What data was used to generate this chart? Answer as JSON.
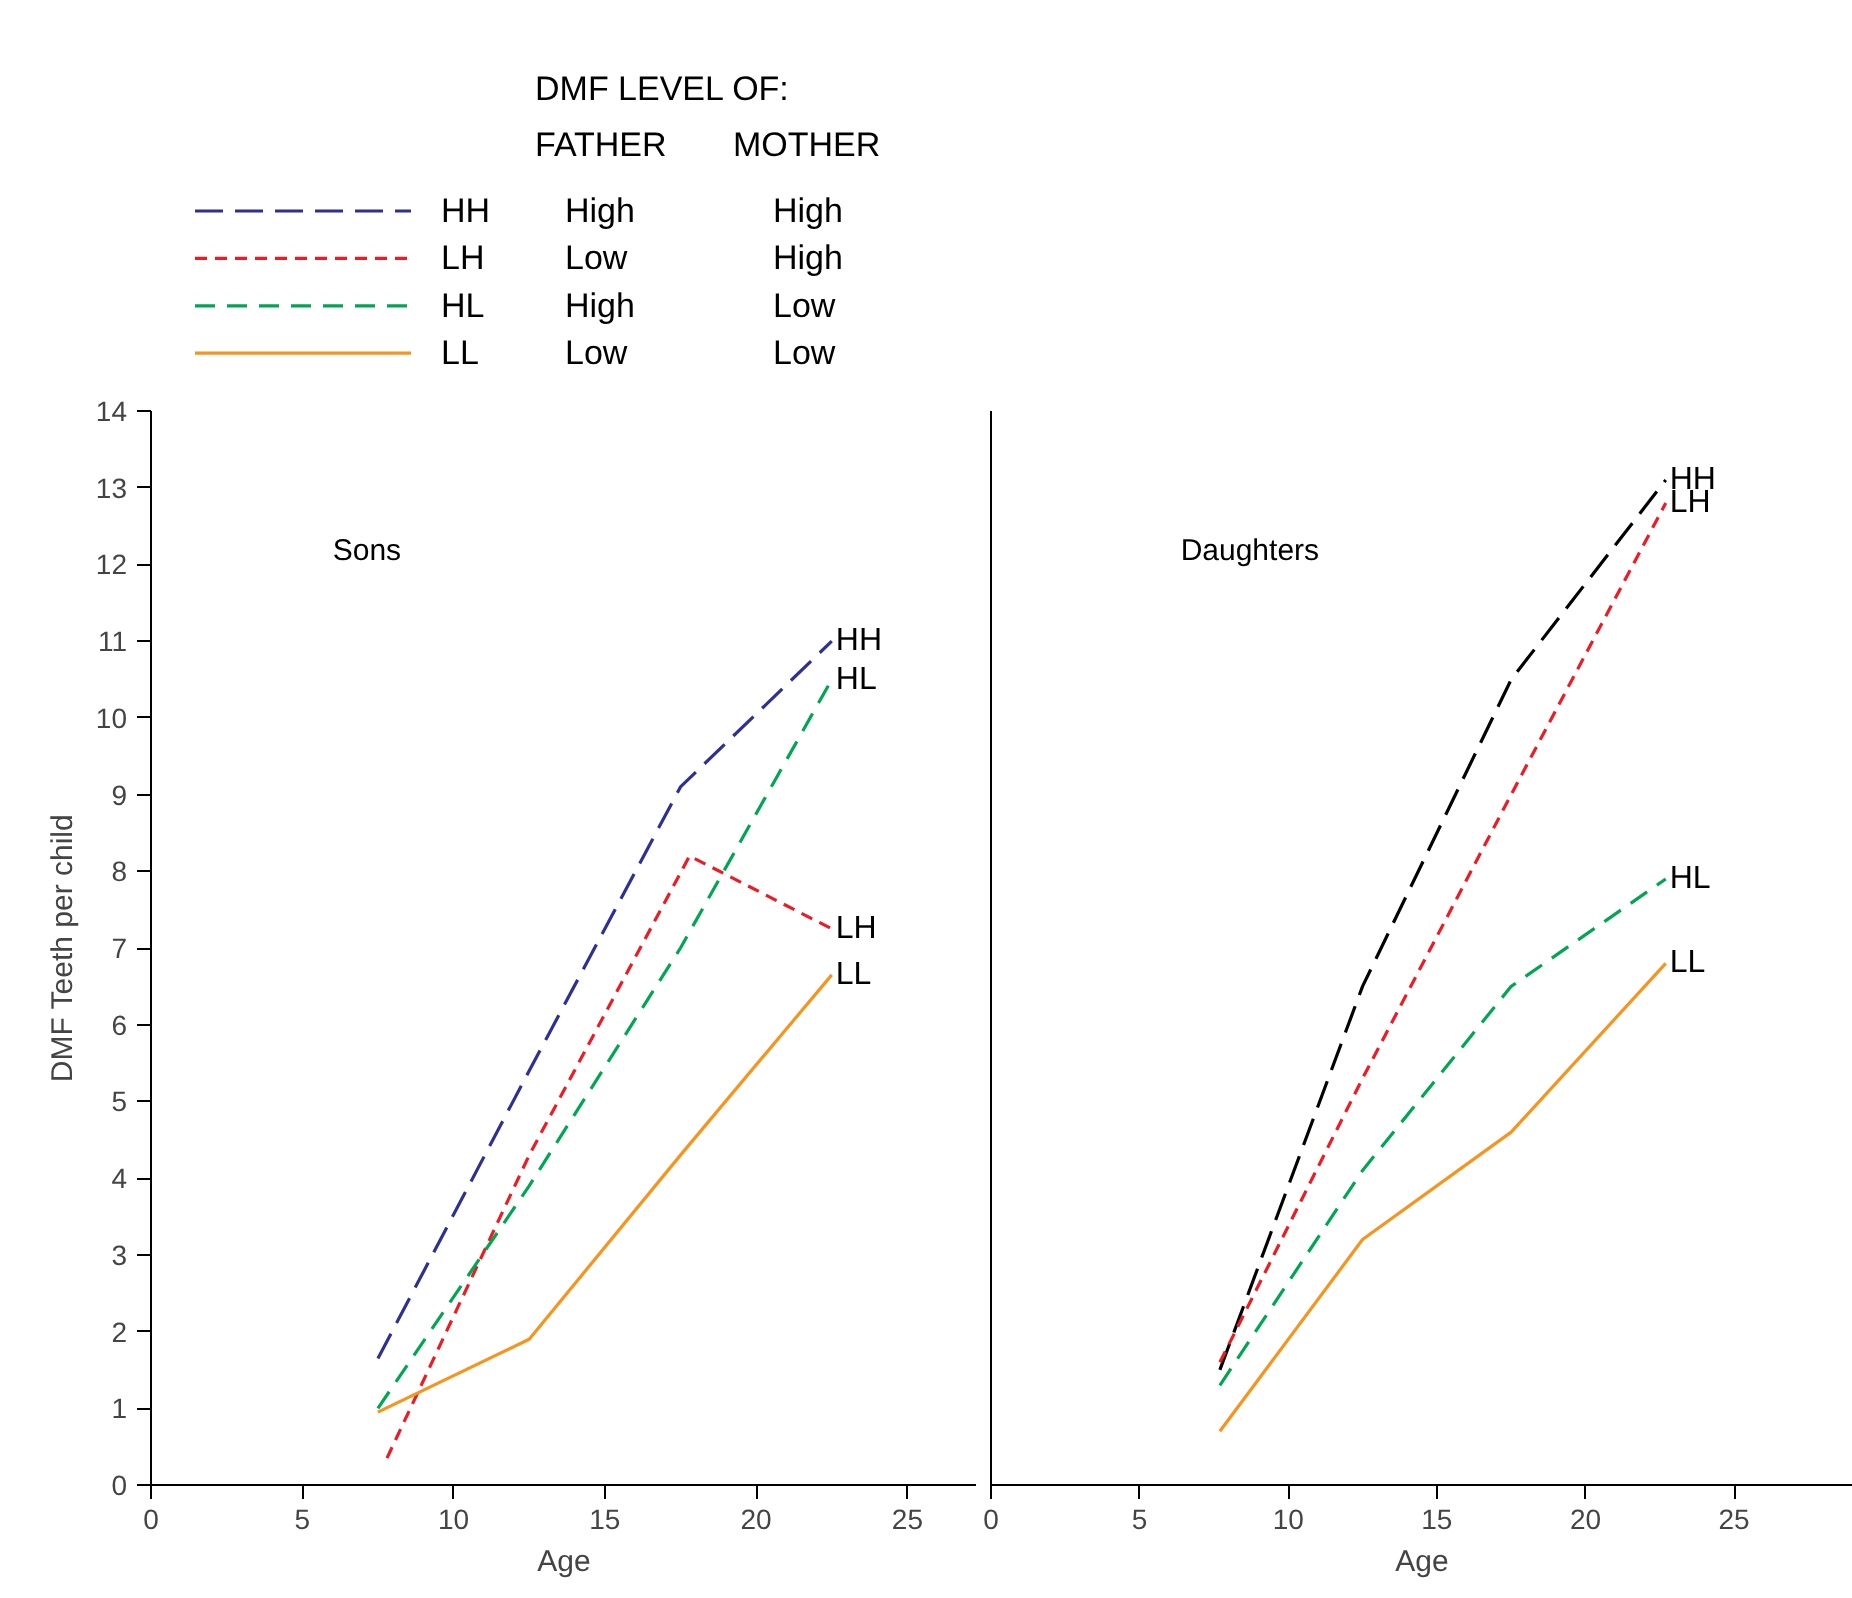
{
  "chart_data": [
    {
      "type": "line",
      "title": "Sons",
      "xlabel": "Age",
      "ylabel": "DMF Teeth per child",
      "legend": "top",
      "legend_title": "DMF LEVEL OF:",
      "annotations": [
        "FATHER",
        "MOTHER",
        "High",
        "High",
        "Low",
        "High",
        "High",
        "Low",
        "Low",
        "Low"
      ],
      "x": [
        7.5,
        12.5,
        17.5,
        22.5
      ],
      "series": [
        {
          "name": "HH",
          "color": "#2e3192",
          "line_style": "dashed",
          "values": [
            1.65,
            5.4,
            9.1,
            11.0
          ]
        },
        {
          "name": "LH",
          "color": "#ed1c24",
          "line_style": "dashed",
          "x": [
            7.8,
            12.5,
            17.8,
            22.5
          ],
          "values": [
            0.35,
            4.3,
            8.2,
            7.25
          ]
        },
        {
          "name": "HL",
          "color": "#00a651",
          "line_style": "dashed",
          "values": [
            1.0,
            3.9,
            7.0,
            10.5
          ]
        },
        {
          "name": "LL",
          "color": "#f7941d",
          "line_style": "solid",
          "values": [
            0.95,
            1.9,
            4.3,
            6.65
          ]
        }
      ],
      "xlim": [
        0,
        27.3
      ],
      "xticks": [
        0,
        5,
        10,
        15,
        20,
        25
      ],
      "ylim": [
        0,
        14
      ],
      "yticks": [
        0,
        1,
        2,
        3,
        4,
        5,
        6,
        7,
        8,
        9,
        10,
        11,
        12,
        13,
        14
      ]
    },
    {
      "type": "line",
      "title": "Daughters",
      "xlabel": "Age",
      "tick_labels": "x",
      "x": [
        7.7,
        12.5,
        17.5,
        22.7
      ],
      "series": [
        {
          "name": "HH",
          "color": "#000000",
          "line_style": "dashed",
          "values": [
            1.5,
            6.5,
            10.5,
            13.1
          ]
        },
        {
          "name": "LH",
          "color": "#ed1c24",
          "line_style": "dashed",
          "values": [
            1.6,
            5.3,
            9.0,
            12.8
          ]
        },
        {
          "name": "HL",
          "color": "#00a651",
          "line_style": "dashed",
          "values": [
            1.3,
            4.1,
            6.5,
            7.9
          ]
        },
        {
          "name": "LL",
          "color": "#f7941d",
          "line_style": "solid",
          "values": [
            0.7,
            3.2,
            4.6,
            6.8
          ]
        }
      ],
      "xlim": [
        0,
        29
      ],
      "xticks": [
        0,
        5,
        10,
        15,
        20,
        25
      ],
      "ylim": [
        0,
        14
      ],
      "yticks": [
        0,
        1,
        2,
        3,
        4,
        5,
        6,
        7,
        8,
        9,
        10,
        11,
        12,
        13,
        14
      ]
    }
  ]
}
